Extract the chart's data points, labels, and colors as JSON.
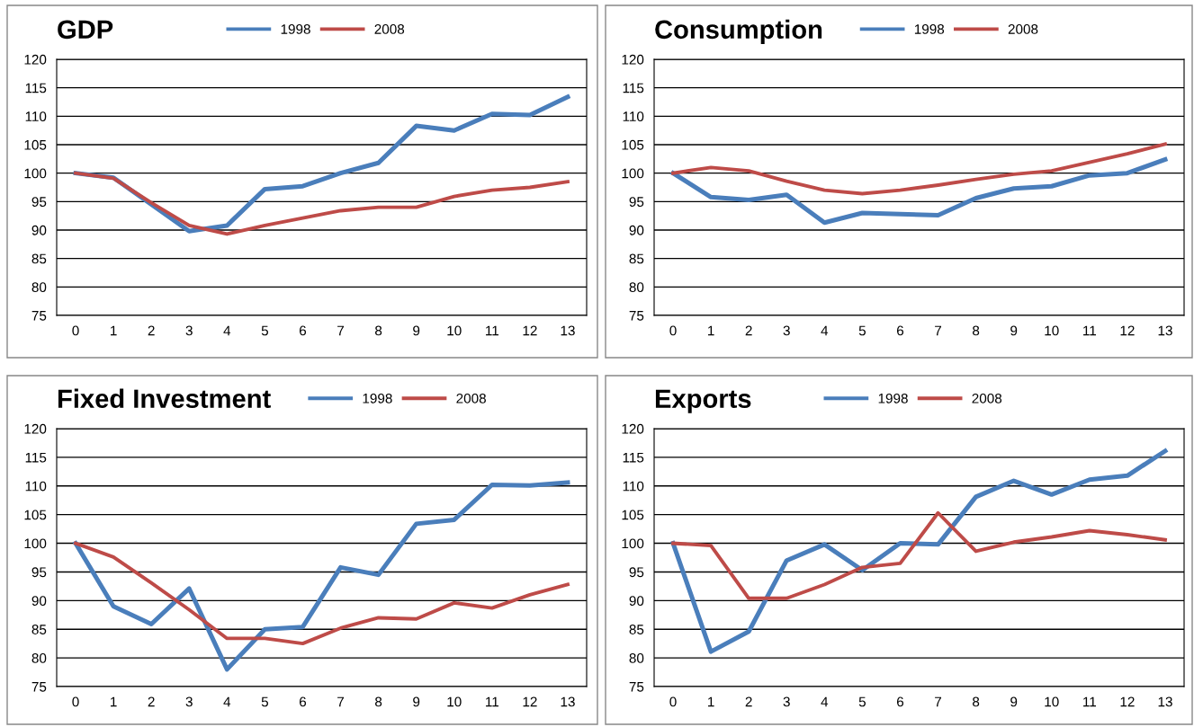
{
  "chart_data": [
    {
      "type": "line",
      "title": "GDP",
      "categories": [
        "0",
        "1",
        "2",
        "3",
        "4",
        "5",
        "6",
        "7",
        "8",
        "9",
        "10",
        "11",
        "12",
        "13"
      ],
      "ylim": [
        75,
        120
      ],
      "yticks": [
        75,
        80,
        85,
        90,
        95,
        100,
        105,
        110,
        115,
        120
      ],
      "grid": "y",
      "legend": "top",
      "series": [
        {
          "name": "1998",
          "color": "#4a7ebb",
          "values": [
            100,
            99.2,
            94.5,
            89.8,
            90.8,
            97.2,
            97.7,
            100,
            101.8,
            108.3,
            107.5,
            110.4,
            110.2,
            113.4
          ]
        },
        {
          "name": "2008",
          "color": "#be4b48",
          "values": [
            100,
            99.1,
            94.8,
            90.8,
            89.3,
            90.8,
            92.1,
            93.4,
            94.0,
            94.0,
            95.9,
            97.0,
            97.5,
            98.5
          ]
        }
      ]
    },
    {
      "type": "line",
      "title": "Consumption",
      "categories": [
        "0",
        "1",
        "2",
        "3",
        "4",
        "5",
        "6",
        "7",
        "8",
        "9",
        "10",
        "11",
        "12",
        "13"
      ],
      "ylim": [
        75,
        120
      ],
      "yticks": [
        75,
        80,
        85,
        90,
        95,
        100,
        105,
        110,
        115,
        120
      ],
      "grid": "y",
      "legend": "top",
      "series": [
        {
          "name": "1998",
          "color": "#4a7ebb",
          "values": [
            100,
            95.8,
            95.3,
            96.2,
            91.3,
            93.0,
            92.8,
            92.6,
            95.6,
            97.3,
            97.7,
            99.6,
            100.0,
            102.4
          ]
        },
        {
          "name": "2008",
          "color": "#be4b48",
          "values": [
            100,
            101.0,
            100.4,
            98.6,
            97.0,
            96.4,
            97.0,
            97.9,
            98.9,
            99.8,
            100.4,
            101.9,
            103.4,
            105.1
          ]
        }
      ]
    },
    {
      "type": "line",
      "title": "Fixed Investment",
      "categories": [
        "0",
        "1",
        "2",
        "3",
        "4",
        "5",
        "6",
        "7",
        "8",
        "9",
        "10",
        "11",
        "12",
        "13"
      ],
      "ylim": [
        75,
        120
      ],
      "yticks": [
        75,
        80,
        85,
        90,
        95,
        100,
        105,
        110,
        115,
        120
      ],
      "grid": "y",
      "legend": "top",
      "series": [
        {
          "name": "1998",
          "color": "#4a7ebb",
          "values": [
            100,
            89.0,
            85.9,
            92.1,
            78.0,
            85.0,
            85.4,
            95.8,
            94.5,
            103.4,
            104.1,
            110.2,
            110.1,
            110.6
          ]
        },
        {
          "name": "2008",
          "color": "#be4b48",
          "values": [
            100,
            97.6,
            93.1,
            88.4,
            83.4,
            83.4,
            82.5,
            85.2,
            87.0,
            86.8,
            89.6,
            88.7,
            91.0,
            92.8
          ]
        }
      ]
    },
    {
      "type": "line",
      "title": "Exports",
      "categories": [
        "0",
        "1",
        "2",
        "3",
        "4",
        "5",
        "6",
        "7",
        "8",
        "9",
        "10",
        "11",
        "12",
        "13"
      ],
      "ylim": [
        75,
        120
      ],
      "yticks": [
        75,
        80,
        85,
        90,
        95,
        100,
        105,
        110,
        115,
        120
      ],
      "grid": "y",
      "legend": "top",
      "series": [
        {
          "name": "1998",
          "color": "#4a7ebb",
          "values": [
            100,
            81.1,
            84.6,
            97.0,
            99.8,
            95.3,
            100.0,
            99.8,
            108.1,
            110.9,
            108.5,
            111.1,
            111.8,
            116.1
          ]
        },
        {
          "name": "2008",
          "color": "#be4b48",
          "values": [
            100,
            99.6,
            90.4,
            90.4,
            92.8,
            95.8,
            96.5,
            105.3,
            98.6,
            100.2,
            101.1,
            102.2,
            101.5,
            100.6
          ]
        }
      ]
    }
  ]
}
